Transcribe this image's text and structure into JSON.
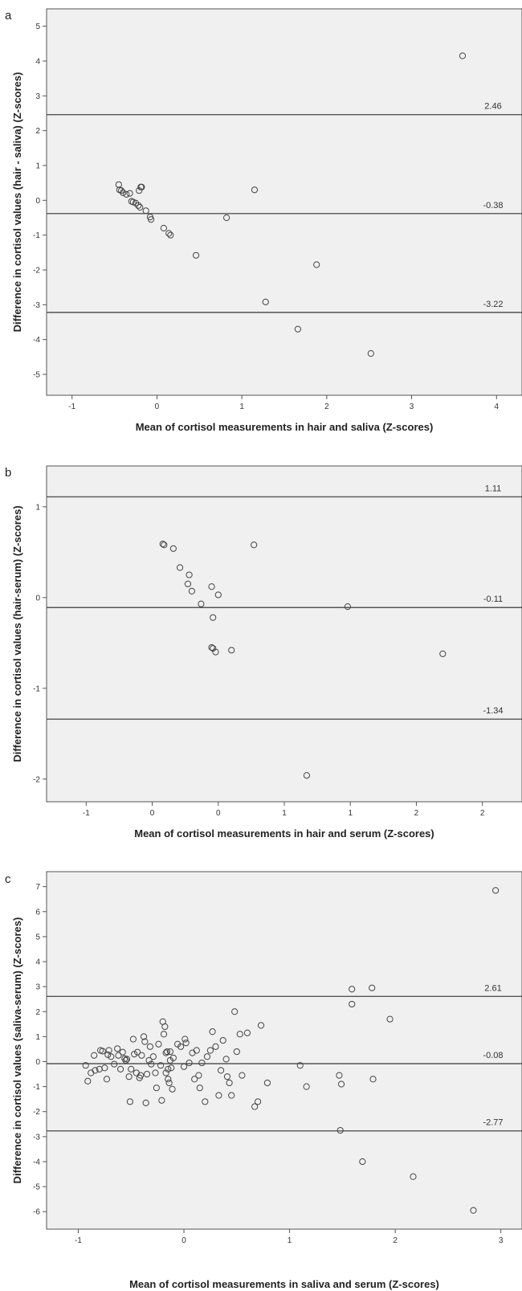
{
  "chart_data": [
    {
      "panel_label": "a",
      "type": "scatter",
      "xlabel": "Mean of cortisol measurements in hair and saliva (Z-scores)",
      "ylabel": "Difference in cortisol values (hair - saliva) (Z-scores)",
      "xlim": [
        -1.3,
        4.3
      ],
      "ylim": [
        -5.6,
        5.5
      ],
      "x_ticks": [
        -1,
        0,
        1,
        2,
        3,
        4
      ],
      "x_tick_labels": [
        "-1",
        "0",
        "1",
        "2",
        "3",
        "4"
      ],
      "y_ticks": [
        5,
        4,
        3,
        2,
        1,
        0,
        -1,
        -2,
        -3,
        -4,
        -5
      ],
      "y_tick_labels": [
        "5",
        "4",
        "3",
        "2",
        "1",
        "0",
        "-1",
        "-2",
        "-3",
        "-4",
        "-5"
      ],
      "reference_lines": [
        {
          "value": 2.46,
          "label": "2.46"
        },
        {
          "value": -0.38,
          "label": "-0.38"
        },
        {
          "value": -3.22,
          "label": "-3.22"
        }
      ],
      "grid": false,
      "points": [
        [
          -0.45,
          0.45
        ],
        [
          -0.44,
          0.3
        ],
        [
          -0.42,
          0.28
        ],
        [
          -0.4,
          0.22
        ],
        [
          -0.36,
          0.17
        ],
        [
          -0.32,
          0.2
        ],
        [
          -0.3,
          -0.03
        ],
        [
          -0.28,
          -0.05
        ],
        [
          -0.25,
          -0.08
        ],
        [
          -0.22,
          -0.15
        ],
        [
          -0.2,
          -0.2
        ],
        [
          -0.21,
          0.28
        ],
        [
          -0.19,
          0.38
        ],
        [
          -0.18,
          0.38
        ],
        [
          -0.13,
          -0.3
        ],
        [
          -0.08,
          -0.48
        ],
        [
          -0.07,
          -0.55
        ],
        [
          0.08,
          -0.8
        ],
        [
          0.14,
          -0.95
        ],
        [
          0.16,
          -1.0
        ],
        [
          0.46,
          -1.58
        ],
        [
          0.82,
          -0.5
        ],
        [
          1.15,
          0.3
        ],
        [
          1.28,
          -2.92
        ],
        [
          1.66,
          -3.7
        ],
        [
          1.88,
          -1.85
        ],
        [
          2.52,
          -4.4
        ],
        [
          3.6,
          4.15
        ]
      ]
    },
    {
      "panel_label": "b",
      "type": "scatter",
      "xlabel": "Mean of cortisol measurements in hair and serum (Z-scores)",
      "ylabel": "Difference in cortisol values (hair-serum) (Z-scores)",
      "xlim": [
        -1.3,
        2.3
      ],
      "ylim": [
        -2.25,
        1.45
      ],
      "x_ticks": [
        -1,
        -0.5,
        0,
        0.5,
        1,
        1.5,
        2
      ],
      "x_tick_labels": [
        "-1",
        "0",
        "0",
        "1",
        "1",
        "2",
        "2"
      ],
      "y_ticks": [
        1,
        0,
        -1,
        -2
      ],
      "y_tick_labels": [
        "1",
        "0",
        "-1",
        "-2"
      ],
      "reference_lines": [
        {
          "value": 1.11,
          "label": "1.11"
        },
        {
          "value": -0.11,
          "label": "-0.11"
        },
        {
          "value": -1.34,
          "label": "-1.34"
        }
      ],
      "grid": false,
      "points": [
        [
          -0.42,
          0.59
        ],
        [
          -0.41,
          0.58
        ],
        [
          -0.34,
          0.54
        ],
        [
          -0.29,
          0.33
        ],
        [
          -0.22,
          0.25
        ],
        [
          -0.23,
          0.15
        ],
        [
          -0.2,
          0.07
        ],
        [
          -0.13,
          -0.07
        ],
        [
          -0.04,
          -0.22
        ],
        [
          -0.05,
          0.12
        ],
        [
          -0.05,
          -0.55
        ],
        [
          -0.04,
          -0.56
        ],
        [
          -0.02,
          -0.6
        ],
        [
          0.0,
          0.03
        ],
        [
          0.1,
          -0.58
        ],
        [
          0.27,
          0.58
        ],
        [
          0.98,
          -0.1
        ],
        [
          1.7,
          -0.62
        ],
        [
          0.67,
          -1.96
        ]
      ]
    },
    {
      "panel_label": "c",
      "type": "scatter",
      "xlabel": "Mean of cortisol measurements in saliva and serum (Z-scores)",
      "ylabel": "Difference in cortisol values (saliva-serum) (Z-scores)",
      "xlim": [
        -1.3,
        3.2
      ],
      "ylim": [
        -6.7,
        7.6
      ],
      "x_ticks": [
        -1,
        0,
        1,
        2,
        3
      ],
      "x_tick_labels": [
        "-1",
        "0",
        "1",
        "2",
        "3"
      ],
      "y_ticks": [
        7,
        6,
        5,
        4,
        3,
        2,
        1,
        0,
        -1,
        -2,
        -3,
        -4,
        -5,
        -6
      ],
      "y_tick_labels": [
        "7",
        "6",
        "5",
        "4",
        "3",
        "2",
        "1",
        "0",
        "-1",
        "-2",
        "-3",
        "-4",
        "-5",
        "-6"
      ],
      "reference_lines": [
        {
          "value": 2.61,
          "label": "2.61"
        },
        {
          "value": -0.08,
          "label": "-0.08"
        },
        {
          "value": -2.77,
          "label": "-2.77"
        }
      ],
      "grid": false,
      "points": [
        [
          -0.93,
          -0.15
        ],
        [
          -0.91,
          -0.78
        ],
        [
          -0.88,
          -0.45
        ],
        [
          -0.85,
          0.25
        ],
        [
          -0.84,
          -0.35
        ],
        [
          -0.8,
          -0.3
        ],
        [
          -0.79,
          0.45
        ],
        [
          -0.77,
          0.42
        ],
        [
          -0.75,
          -0.25
        ],
        [
          -0.73,
          -0.7
        ],
        [
          -0.72,
          0.28
        ],
        [
          -0.71,
          0.45
        ],
        [
          -0.69,
          0.2
        ],
        [
          -0.66,
          -0.1
        ],
        [
          -0.63,
          0.52
        ],
        [
          -0.62,
          0.25
        ],
        [
          -0.6,
          -0.3
        ],
        [
          -0.58,
          0.38
        ],
        [
          -0.56,
          0.12
        ],
        [
          -0.55,
          0.05
        ],
        [
          -0.54,
          0.1
        ],
        [
          -0.52,
          -0.6
        ],
        [
          -0.51,
          -1.6
        ],
        [
          -0.5,
          -0.3
        ],
        [
          -0.48,
          0.9
        ],
        [
          -0.47,
          0.3
        ],
        [
          -0.45,
          -0.45
        ],
        [
          -0.44,
          0.38
        ],
        [
          -0.42,
          -0.65
        ],
        [
          -0.41,
          -0.55
        ],
        [
          -0.4,
          0.25
        ],
        [
          -0.38,
          1.0
        ],
        [
          -0.37,
          0.8
        ],
        [
          -0.36,
          -1.65
        ],
        [
          -0.35,
          -0.5
        ],
        [
          -0.33,
          0.05
        ],
        [
          -0.32,
          0.6
        ],
        [
          -0.31,
          -0.1
        ],
        [
          -0.29,
          0.2
        ],
        [
          -0.27,
          -0.45
        ],
        [
          -0.26,
          -1.05
        ],
        [
          -0.24,
          0.7
        ],
        [
          -0.22,
          -0.15
        ],
        [
          -0.21,
          -1.55
        ],
        [
          -0.2,
          1.6
        ],
        [
          -0.19,
          1.1
        ],
        [
          -0.18,
          1.4
        ],
        [
          -0.17,
          0.35
        ],
        [
          -0.17,
          -0.45
        ],
        [
          -0.16,
          0.4
        ],
        [
          -0.15,
          -0.3
        ],
        [
          -0.15,
          -0.7
        ],
        [
          -0.14,
          -0.85
        ],
        [
          -0.13,
          0.05
        ],
        [
          -0.13,
          0.4
        ],
        [
          -0.12,
          -0.25
        ],
        [
          -0.11,
          -1.1
        ],
        [
          -0.1,
          0.15
        ],
        [
          -0.06,
          0.7
        ],
        [
          -0.03,
          0.6
        ],
        [
          0.0,
          -0.2
        ],
        [
          0.01,
          0.9
        ],
        [
          0.02,
          0.75
        ],
        [
          0.05,
          -0.05
        ],
        [
          0.08,
          0.35
        ],
        [
          0.1,
          -0.7
        ],
        [
          0.12,
          0.45
        ],
        [
          0.14,
          -0.55
        ],
        [
          0.15,
          -1.05
        ],
        [
          0.17,
          -0.05
        ],
        [
          0.2,
          -1.6
        ],
        [
          0.22,
          0.2
        ],
        [
          0.25,
          0.45
        ],
        [
          0.27,
          1.2
        ],
        [
          0.3,
          0.6
        ],
        [
          0.33,
          -1.35
        ],
        [
          0.35,
          -0.35
        ],
        [
          0.37,
          0.85
        ],
        [
          0.4,
          0.1
        ],
        [
          0.41,
          -0.6
        ],
        [
          0.43,
          -0.85
        ],
        [
          0.45,
          -1.35
        ],
        [
          0.48,
          2.0
        ],
        [
          0.5,
          0.4
        ],
        [
          0.53,
          1.1
        ],
        [
          0.55,
          -0.55
        ],
        [
          0.6,
          1.15
        ],
        [
          0.67,
          -1.8
        ],
        [
          0.7,
          -1.6
        ],
        [
          0.73,
          1.45
        ],
        [
          0.79,
          -0.85
        ],
        [
          1.1,
          -0.15
        ],
        [
          1.16,
          -1.0
        ],
        [
          1.47,
          -0.55
        ],
        [
          1.48,
          -2.75
        ],
        [
          1.49,
          -0.9
        ],
        [
          1.59,
          2.9
        ],
        [
          1.59,
          2.3
        ],
        [
          1.69,
          -4.0
        ],
        [
          1.78,
          2.95
        ],
        [
          1.79,
          -0.7
        ],
        [
          1.95,
          1.7
        ],
        [
          2.17,
          -4.6
        ],
        [
          2.74,
          -5.95
        ],
        [
          2.95,
          6.85
        ]
      ]
    }
  ]
}
